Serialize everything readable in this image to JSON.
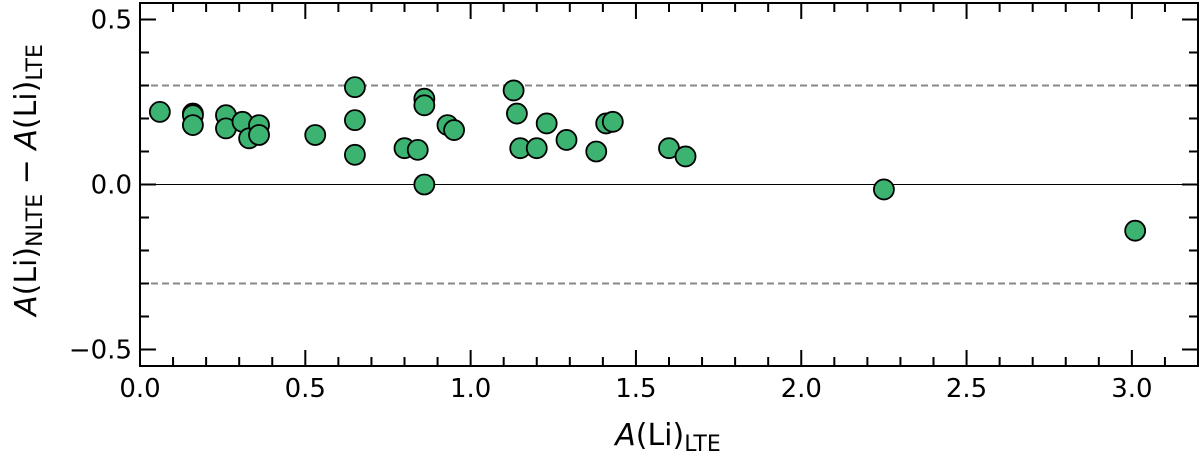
{
  "chart_data": {
    "type": "scatter",
    "xlabel": {
      "main": "A",
      "paren": "(Li)",
      "sub": "LTE"
    },
    "ylabel": {
      "main1": "A",
      "paren1": "(Li)",
      "sub1": "NLTE",
      "minus": " − ",
      "main2": "A",
      "paren2": "(Li)",
      "sub2": "LTE"
    },
    "xlim": [
      0.0,
      3.2
    ],
    "ylim": [
      -0.55,
      0.55
    ],
    "xticks": [
      0.0,
      0.5,
      1.0,
      1.5,
      2.0,
      2.5,
      3.0
    ],
    "xtick_labels": [
      "0.0",
      "0.5",
      "1.0",
      "1.5",
      "2.0",
      "2.5",
      "3.0"
    ],
    "yticks": [
      -0.5,
      0.0,
      0.5
    ],
    "ytick_labels": [
      "−0.5",
      "0.0",
      "0.5"
    ],
    "reference_lines": [
      {
        "y": 0.0,
        "style": "solid"
      },
      {
        "y": 0.3,
        "style": "dashed"
      },
      {
        "y": -0.3,
        "style": "dashed"
      }
    ],
    "marker_color": "#3cb371",
    "points": [
      {
        "x": 0.06,
        "y": 0.22
      },
      {
        "x": 0.16,
        "y": 0.215
      },
      {
        "x": 0.16,
        "y": 0.21
      },
      {
        "x": 0.16,
        "y": 0.18
      },
      {
        "x": 0.26,
        "y": 0.21
      },
      {
        "x": 0.26,
        "y": 0.17
      },
      {
        "x": 0.31,
        "y": 0.19
      },
      {
        "x": 0.33,
        "y": 0.14
      },
      {
        "x": 0.36,
        "y": 0.18
      },
      {
        "x": 0.36,
        "y": 0.15
      },
      {
        "x": 0.53,
        "y": 0.15
      },
      {
        "x": 0.65,
        "y": 0.295
      },
      {
        "x": 0.65,
        "y": 0.195
      },
      {
        "x": 0.65,
        "y": 0.09
      },
      {
        "x": 0.8,
        "y": 0.11
      },
      {
        "x": 0.84,
        "y": 0.105
      },
      {
        "x": 0.86,
        "y": 0.26
      },
      {
        "x": 0.86,
        "y": 0.24
      },
      {
        "x": 0.86,
        "y": 0.0
      },
      {
        "x": 0.93,
        "y": 0.18
      },
      {
        "x": 0.95,
        "y": 0.165
      },
      {
        "x": 1.13,
        "y": 0.285
      },
      {
        "x": 1.14,
        "y": 0.215
      },
      {
        "x": 1.15,
        "y": 0.11
      },
      {
        "x": 1.2,
        "y": 0.11
      },
      {
        "x": 1.23,
        "y": 0.185
      },
      {
        "x": 1.29,
        "y": 0.135
      },
      {
        "x": 1.38,
        "y": 0.1
      },
      {
        "x": 1.41,
        "y": 0.185
      },
      {
        "x": 1.43,
        "y": 0.19
      },
      {
        "x": 1.6,
        "y": 0.11
      },
      {
        "x": 1.65,
        "y": 0.085
      },
      {
        "x": 2.25,
        "y": -0.015
      },
      {
        "x": 3.01,
        "y": -0.14
      }
    ]
  }
}
